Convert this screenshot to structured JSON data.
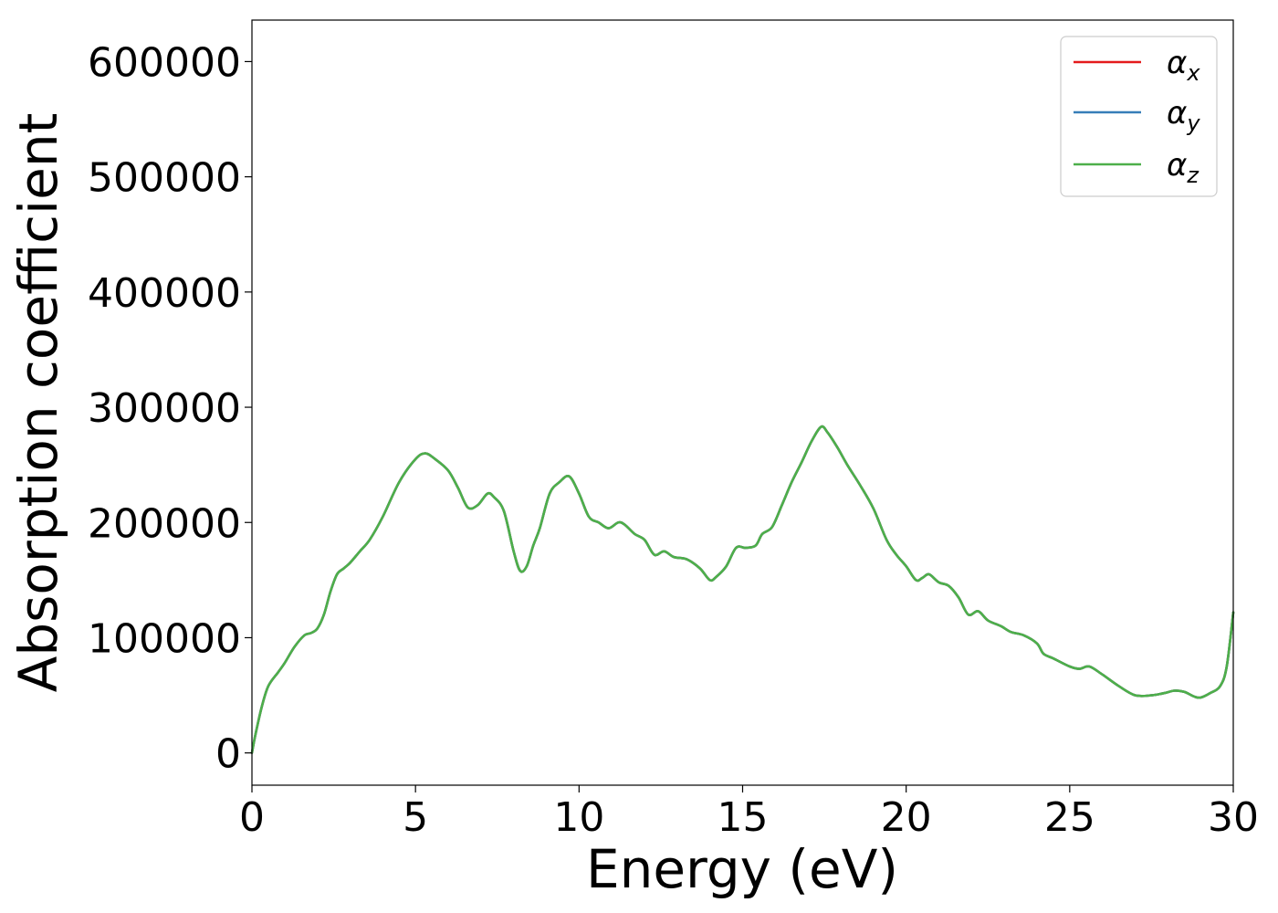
{
  "chart_data": {
    "type": "line",
    "title": "",
    "xlabel": "Energy (eV)",
    "ylabel": "Absorption coefficient",
    "xlim": [
      0,
      30
    ],
    "ylim": [
      -28000,
      636000
    ],
    "xticks": [
      0,
      5,
      10,
      15,
      20,
      25,
      30
    ],
    "yticks": [
      0,
      100000,
      200000,
      300000,
      400000,
      500000,
      600000
    ],
    "xtick_labels": [
      "0",
      "5",
      "10",
      "15",
      "20",
      "25",
      "30"
    ],
    "ytick_labels": [
      "0",
      "100000",
      "200000",
      "300000",
      "400000",
      "500000",
      "600000"
    ],
    "grid": false,
    "legend_position": "top-right",
    "x": [
      0,
      0.1,
      0.3,
      0.5,
      0.8,
      1.0,
      1.3,
      1.6,
      1.8,
      2.0,
      2.2,
      2.4,
      2.6,
      2.8,
      3.0,
      3.3,
      3.6,
      4.0,
      4.5,
      5.0,
      5.3,
      5.6,
      6.0,
      6.3,
      6.6,
      6.9,
      7.2,
      7.4,
      7.7,
      8.0,
      8.2,
      8.4,
      8.6,
      8.8,
      9.1,
      9.4,
      9.7,
      10.0,
      10.3,
      10.6,
      10.9,
      11.2,
      11.4,
      11.7,
      12.0,
      12.3,
      12.6,
      12.9,
      13.3,
      13.7,
      14.0,
      14.2,
      14.5,
      14.8,
      15.1,
      15.4,
      15.6,
      15.9,
      16.2,
      16.5,
      16.8,
      17.1,
      17.4,
      17.6,
      17.9,
      18.2,
      18.6,
      19.0,
      19.4,
      19.7,
      20.0,
      20.3,
      20.5,
      20.7,
      21.0,
      21.3,
      21.6,
      21.9,
      22.2,
      22.5,
      22.9,
      23.2,
      23.6,
      24.0,
      24.2,
      24.5,
      25.0,
      25.3,
      25.6,
      26.0,
      26.5,
      27.0,
      27.5,
      27.9,
      28.2,
      28.5,
      28.8,
      29.0,
      29.3,
      29.6,
      29.8,
      30.0
    ],
    "series": [
      {
        "name": "αx",
        "color": "#e41a1c",
        "values": [
          0,
          15000,
          40000,
          58000,
          70000,
          78000,
          92000,
          102000,
          104000,
          108000,
          120000,
          140000,
          155000,
          160000,
          165000,
          175000,
          185000,
          205000,
          235000,
          255000,
          260000,
          255000,
          245000,
          230000,
          213000,
          215000,
          225000,
          222000,
          210000,
          175000,
          158000,
          162000,
          180000,
          195000,
          225000,
          235000,
          240000,
          225000,
          205000,
          200000,
          195000,
          200000,
          198000,
          190000,
          185000,
          172000,
          175000,
          170000,
          168000,
          160000,
          150000,
          153000,
          162000,
          178000,
          178000,
          180000,
          190000,
          196000,
          215000,
          235000,
          252000,
          270000,
          283000,
          278000,
          265000,
          250000,
          232000,
          212000,
          185000,
          172000,
          162000,
          150000,
          152000,
          155000,
          148000,
          145000,
          135000,
          120000,
          123000,
          115000,
          110000,
          105000,
          102000,
          95000,
          86000,
          82000,
          75000,
          73000,
          75000,
          68000,
          58000,
          50000,
          50000,
          52000,
          54000,
          53000,
          49000,
          48000,
          52000,
          58000,
          75000,
          122000
        ]
      },
      {
        "name": "αy",
        "color": "#377eb8",
        "values": [
          0,
          15000,
          40000,
          58000,
          70000,
          78000,
          92000,
          102000,
          104000,
          108000,
          120000,
          140000,
          155000,
          160000,
          165000,
          175000,
          185000,
          205000,
          235000,
          255000,
          260000,
          255000,
          245000,
          230000,
          213000,
          215000,
          225000,
          222000,
          210000,
          175000,
          158000,
          162000,
          180000,
          195000,
          225000,
          235000,
          240000,
          225000,
          205000,
          200000,
          195000,
          200000,
          198000,
          190000,
          185000,
          172000,
          175000,
          170000,
          168000,
          160000,
          150000,
          153000,
          162000,
          178000,
          178000,
          180000,
          190000,
          196000,
          215000,
          235000,
          252000,
          270000,
          283000,
          278000,
          265000,
          250000,
          232000,
          212000,
          185000,
          172000,
          162000,
          150000,
          152000,
          155000,
          148000,
          145000,
          135000,
          120000,
          123000,
          115000,
          110000,
          105000,
          102000,
          95000,
          86000,
          82000,
          75000,
          73000,
          75000,
          68000,
          58000,
          50000,
          50000,
          52000,
          54000,
          53000,
          49000,
          48000,
          52000,
          58000,
          75000,
          122000
        ]
      },
      {
        "name": "αz",
        "color": "#4daf4a",
        "values": [
          0,
          15000,
          40000,
          58000,
          70000,
          78000,
          92000,
          102000,
          104000,
          108000,
          120000,
          140000,
          155000,
          160000,
          165000,
          175000,
          185000,
          205000,
          235000,
          255000,
          260000,
          255000,
          245000,
          230000,
          213000,
          215000,
          225000,
          222000,
          210000,
          175000,
          158000,
          162000,
          180000,
          195000,
          225000,
          235000,
          240000,
          225000,
          205000,
          200000,
          195000,
          200000,
          198000,
          190000,
          185000,
          172000,
          175000,
          170000,
          168000,
          160000,
          150000,
          153000,
          162000,
          178000,
          178000,
          180000,
          190000,
          196000,
          215000,
          235000,
          252000,
          270000,
          283000,
          278000,
          265000,
          250000,
          232000,
          212000,
          185000,
          172000,
          162000,
          150000,
          152000,
          155000,
          148000,
          145000,
          135000,
          120000,
          123000,
          115000,
          110000,
          105000,
          102000,
          95000,
          86000,
          82000,
          75000,
          73000,
          75000,
          68000,
          58000,
          50000,
          50000,
          52000,
          54000,
          53000,
          49000,
          48000,
          52000,
          58000,
          75000,
          122000
        ]
      }
    ],
    "legend": [
      {
        "symbol": "α",
        "subscript": "x",
        "color": "#e41a1c"
      },
      {
        "symbol": "α",
        "subscript": "y",
        "color": "#377eb8"
      },
      {
        "symbol": "α",
        "subscript": "z",
        "color": "#4daf4a"
      }
    ]
  }
}
